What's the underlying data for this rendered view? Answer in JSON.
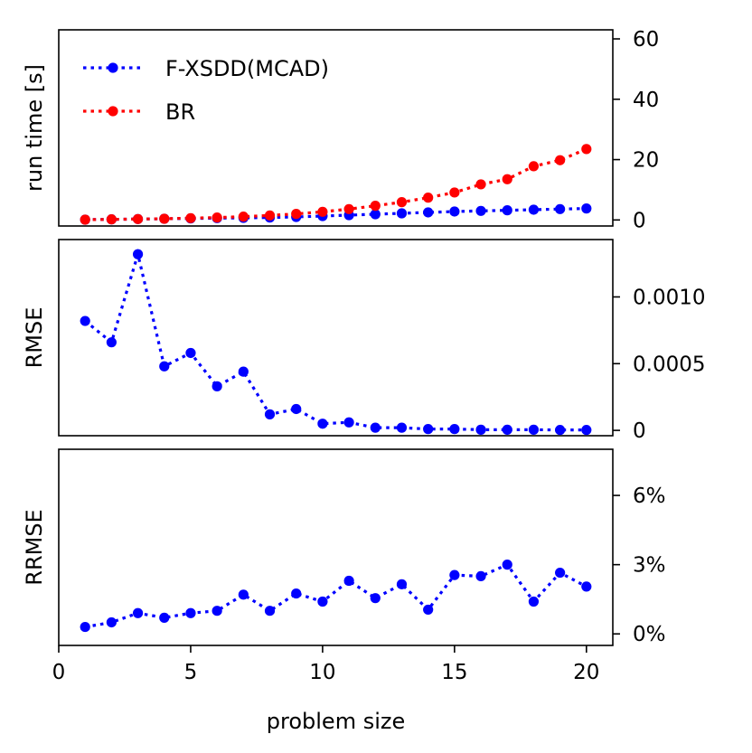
{
  "chart_data": [
    {
      "type": "line",
      "name": "runtime",
      "ylabel": "run time [s]",
      "xlabel": "",
      "xlim": [
        0,
        21
      ],
      "ylim": [
        -2,
        63
      ],
      "yticks": [
        0,
        20,
        40,
        60
      ],
      "ytick_labels": [
        "0",
        "20",
        "40",
        "60"
      ],
      "grid": false,
      "legend_position": "top-left",
      "x": [
        1,
        2,
        3,
        4,
        5,
        6,
        7,
        8,
        9,
        10,
        11,
        12,
        13,
        14,
        15,
        16,
        17,
        18,
        19,
        20
      ],
      "series": [
        {
          "name": "F-XSDD(MCAD)",
          "color": "#0000ff",
          "values": [
            0.1,
            0.2,
            0.3,
            0.4,
            0.5,
            0.6,
            0.7,
            0.8,
            1.0,
            1.3,
            1.6,
            1.9,
            2.2,
            2.5,
            2.8,
            3.0,
            3.2,
            3.4,
            3.6,
            3.8
          ]
        },
        {
          "name": "BR",
          "color": "#ff0000",
          "values": [
            0.1,
            0.2,
            0.3,
            0.4,
            0.6,
            0.8,
            1.1,
            1.5,
            2.0,
            2.7,
            3.6,
            4.7,
            5.9,
            7.4,
            9.1,
            11.8,
            13.5,
            17.8,
            19.8,
            23.5
          ]
        }
      ]
    },
    {
      "type": "line",
      "name": "rmse",
      "ylabel": "RMSE",
      "xlabel": "",
      "xlim": [
        0,
        21
      ],
      "ylim": [
        -4e-05,
        0.00143
      ],
      "yticks": [
        0,
        0.0005,
        0.001
      ],
      "ytick_labels": [
        "0",
        "0.0005",
        "0.0010"
      ],
      "grid": false,
      "x": [
        1,
        2,
        3,
        4,
        5,
        6,
        7,
        8,
        9,
        10,
        11,
        12,
        13,
        14,
        15,
        16,
        17,
        18,
        19,
        20
      ],
      "series": [
        {
          "name": "F-XSDD(MCAD)",
          "color": "#0000ff",
          "values": [
            0.00082,
            0.00066,
            0.00132,
            0.00048,
            0.00058,
            0.00033,
            0.00044,
            0.00012,
            0.00016,
            5e-05,
            6e-05,
            2e-05,
            2e-05,
            1e-05,
            1e-05,
            5e-06,
            5e-06,
            5e-06,
            3e-06,
            3e-06
          ]
        }
      ]
    },
    {
      "type": "line",
      "name": "rrmse",
      "ylabel": "RRMSE",
      "xlabel": "problem size",
      "xlim": [
        0,
        21
      ],
      "ylim": [
        -0.5,
        8.0
      ],
      "yticks": [
        0,
        3,
        6
      ],
      "ytick_labels": [
        "0%",
        "3%",
        "6%"
      ],
      "xticks": [
        0,
        5,
        10,
        15,
        20
      ],
      "xtick_labels": [
        "0",
        "5",
        "10",
        "15",
        "20"
      ],
      "grid": false,
      "x": [
        1,
        2,
        3,
        4,
        5,
        6,
        7,
        8,
        9,
        10,
        11,
        12,
        13,
        14,
        15,
        16,
        17,
        18,
        19,
        20
      ],
      "series": [
        {
          "name": "F-XSDD(MCAD)",
          "color": "#0000ff",
          "values": [
            0.3,
            0.5,
            0.9,
            0.7,
            0.9,
            1.0,
            1.7,
            1.0,
            1.75,
            1.4,
            2.3,
            1.55,
            2.15,
            1.05,
            2.55,
            2.5,
            3.0,
            1.4,
            2.65,
            2.05
          ]
        }
      ]
    }
  ]
}
